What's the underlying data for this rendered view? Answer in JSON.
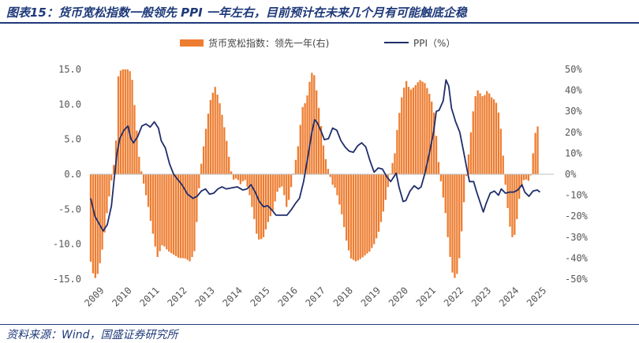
{
  "header": {
    "title": "图表15：货币宽松指数一般领先 PPI 一年左右，目前预计在未来几个月有可能触底企稳"
  },
  "footer": {
    "source": "资料来源：Wind，国盛证券研究所"
  },
  "colors": {
    "bar": "#ed7d31",
    "line": "#1f2d6b",
    "title": "#1f3a7a",
    "axis": "#bfbfbf"
  },
  "chart_data": {
    "type": "bar+line",
    "x_ticks": [
      "2009",
      "2010",
      "2011",
      "2012",
      "2013",
      "2014",
      "2015",
      "2016",
      "2017",
      "2018",
      "2019",
      "2020",
      "2021",
      "2022",
      "2023",
      "2024",
      "2025"
    ],
    "x_range": [
      2009.0,
      2025.75
    ],
    "left_axis": {
      "ylim": [
        -15,
        15
      ],
      "ticks": [
        15,
        10,
        5,
        0,
        -5,
        -10,
        -15
      ],
      "tick_labels": [
        "15.0",
        "10.0",
        "5.0",
        "0.0",
        "-5.0",
        "-10.0",
        "-15.0"
      ]
    },
    "right_axis": {
      "ylim": [
        -50,
        50
      ],
      "ticks": [
        50,
        40,
        30,
        20,
        10,
        0,
        -10,
        -20,
        -30,
        -40,
        -50
      ],
      "tick_labels": [
        "50%",
        "40%",
        "30%",
        "20%",
        "10%",
        "0%",
        "-10%",
        "-20%",
        "-30%",
        "-40%",
        "-50%"
      ]
    },
    "legend": {
      "placement": "top-center"
    },
    "series": [
      {
        "name": "货币宽松指数：领先一年(右)",
        "kind": "bar",
        "axis": "left",
        "anchors": [
          [
            2009.0,
            -12.5
          ],
          [
            2009.1,
            -14.5
          ],
          [
            2009.2,
            -15.0
          ],
          [
            2009.3,
            -13.5
          ],
          [
            2009.45,
            -10.0
          ],
          [
            2009.6,
            -5.0
          ],
          [
            2009.8,
            0.5
          ],
          [
            2009.9,
            3.0
          ],
          [
            2010.0,
            14.0
          ],
          [
            2010.1,
            15.0
          ],
          [
            2010.4,
            15.0
          ],
          [
            2010.5,
            13.5
          ],
          [
            2010.65,
            7.0
          ],
          [
            2010.75,
            2.5
          ],
          [
            2010.85,
            0.0
          ],
          [
            2010.95,
            -2.0
          ],
          [
            2011.1,
            -5.0
          ],
          [
            2011.2,
            -7.5
          ],
          [
            2011.3,
            -9.5
          ],
          [
            2011.4,
            -12.0
          ],
          [
            2011.6,
            -10.0
          ],
          [
            2011.8,
            -11.0
          ],
          [
            2012.0,
            -11.5
          ],
          [
            2012.2,
            -12.0
          ],
          [
            2012.4,
            -12.0
          ],
          [
            2012.6,
            -12.5
          ],
          [
            2012.75,
            -11.0
          ],
          [
            2012.85,
            -6.0
          ],
          [
            2012.95,
            0.0
          ],
          [
            2013.05,
            3.0
          ],
          [
            2013.2,
            7.5
          ],
          [
            2013.35,
            11.0
          ],
          [
            2013.5,
            12.5
          ],
          [
            2013.65,
            10.5
          ],
          [
            2013.8,
            7.5
          ],
          [
            2013.95,
            4.0
          ],
          [
            2014.05,
            1.0
          ],
          [
            2014.15,
            -0.8
          ],
          [
            2014.3,
            -0.5
          ],
          [
            2014.4,
            -1.5
          ],
          [
            2014.5,
            -1.0
          ],
          [
            2014.6,
            -0.8
          ],
          [
            2014.75,
            -3.0
          ],
          [
            2014.9,
            -6.0
          ],
          [
            2015.0,
            -8.5
          ],
          [
            2015.1,
            -9.5
          ],
          [
            2015.25,
            -9.0
          ],
          [
            2015.4,
            -7.0
          ],
          [
            2015.6,
            -5.0
          ],
          [
            2015.75,
            -2.5
          ],
          [
            2015.9,
            -1.5
          ],
          [
            2016.0,
            -3.0
          ],
          [
            2016.1,
            -5.0
          ],
          [
            2016.2,
            -3.0
          ],
          [
            2016.35,
            0.5
          ],
          [
            2016.5,
            4.0
          ],
          [
            2016.65,
            9.5
          ],
          [
            2016.8,
            10.5
          ],
          [
            2016.95,
            14.0
          ],
          [
            2017.05,
            15.0
          ],
          [
            2017.15,
            12.5
          ],
          [
            2017.3,
            8.0
          ],
          [
            2017.45,
            3.0
          ],
          [
            2017.6,
            0.5
          ],
          [
            2017.75,
            -1.5
          ],
          [
            2017.85,
            -2.0
          ],
          [
            2017.95,
            -3.5
          ],
          [
            2018.1,
            -6.0
          ],
          [
            2018.25,
            -9.5
          ],
          [
            2018.4,
            -12.0
          ],
          [
            2018.6,
            -12.5
          ],
          [
            2018.8,
            -12.0
          ],
          [
            2018.95,
            -11.5
          ],
          [
            2019.1,
            -11.0
          ],
          [
            2019.25,
            -10.0
          ],
          [
            2019.4,
            -8.5
          ],
          [
            2019.55,
            -6.0
          ],
          [
            2019.7,
            -3.0
          ],
          [
            2019.85,
            0.5
          ],
          [
            2020.0,
            3.0
          ],
          [
            2020.1,
            7.0
          ],
          [
            2020.25,
            11.0
          ],
          [
            2020.4,
            13.5
          ],
          [
            2020.55,
            12.0
          ],
          [
            2020.7,
            12.5
          ],
          [
            2020.9,
            13.5
          ],
          [
            2021.1,
            13.0
          ],
          [
            2021.25,
            11.5
          ],
          [
            2021.4,
            9.5
          ],
          [
            2021.5,
            5.5
          ],
          [
            2021.6,
            1.0
          ],
          [
            2021.7,
            -2.0
          ],
          [
            2021.85,
            -6.0
          ],
          [
            2021.95,
            -10.5
          ],
          [
            2022.1,
            -14.5
          ],
          [
            2022.2,
            -15.0
          ],
          [
            2022.3,
            -13.5
          ],
          [
            2022.4,
            -9.0
          ],
          [
            2022.5,
            -4.0
          ],
          [
            2022.6,
            0.5
          ],
          [
            2022.7,
            4.0
          ],
          [
            2022.8,
            8.0
          ],
          [
            2022.9,
            11.0
          ],
          [
            2023.0,
            12.0
          ],
          [
            2023.2,
            11.0
          ],
          [
            2023.35,
            12.0
          ],
          [
            2023.5,
            11.0
          ],
          [
            2023.65,
            10.5
          ],
          [
            2023.8,
            8.0
          ],
          [
            2023.9,
            3.5
          ],
          [
            2024.0,
            -1.5
          ],
          [
            2024.1,
            -5.5
          ],
          [
            2024.2,
            -8.5
          ],
          [
            2024.3,
            -9.5
          ],
          [
            2024.4,
            -7.0
          ],
          [
            2024.5,
            -3.5
          ],
          [
            2024.6,
            -1.5
          ],
          [
            2024.7,
            -0.5
          ],
          [
            2024.8,
            -1.0
          ],
          [
            2024.9,
            -0.8
          ],
          [
            2025.0,
            3.0
          ],
          [
            2025.1,
            6.5
          ],
          [
            2025.2,
            7.0
          ]
        ]
      },
      {
        "name": "PPI（%）",
        "kind": "line",
        "axis": "right",
        "points": [
          [
            2009.0,
            -11.5
          ],
          [
            2009.15,
            -20.0
          ],
          [
            2009.3,
            -23.5
          ],
          [
            2009.45,
            -27.0
          ],
          [
            2009.6,
            -24.0
          ],
          [
            2009.75,
            -15.0
          ],
          [
            2009.85,
            -2.0
          ],
          [
            2009.95,
            10.0
          ],
          [
            2010.05,
            17.0
          ],
          [
            2010.2,
            21.0
          ],
          [
            2010.35,
            23.0
          ],
          [
            2010.45,
            17.0
          ],
          [
            2010.55,
            15.0
          ],
          [
            2010.7,
            18.0
          ],
          [
            2010.85,
            23.0
          ],
          [
            2011.0,
            24.0
          ],
          [
            2011.15,
            22.5
          ],
          [
            2011.3,
            25.0
          ],
          [
            2011.45,
            22.0
          ],
          [
            2011.55,
            16.0
          ],
          [
            2011.7,
            12.5
          ],
          [
            2011.85,
            5.0
          ],
          [
            2012.0,
            0.0
          ],
          [
            2012.15,
            -2.5
          ],
          [
            2012.3,
            -5.0
          ],
          [
            2012.5,
            -9.5
          ],
          [
            2012.7,
            -11.5
          ],
          [
            2012.85,
            -10.5
          ],
          [
            2013.0,
            -8.0
          ],
          [
            2013.15,
            -7.0
          ],
          [
            2013.3,
            -9.5
          ],
          [
            2013.45,
            -9.0
          ],
          [
            2013.6,
            -7.0
          ],
          [
            2013.75,
            -6.0
          ],
          [
            2013.9,
            -7.0
          ],
          [
            2014.1,
            -6.5
          ],
          [
            2014.3,
            -6.0
          ],
          [
            2014.5,
            -7.5
          ],
          [
            2014.65,
            -7.0
          ],
          [
            2014.8,
            -5.0
          ],
          [
            2014.95,
            -8.5
          ],
          [
            2015.1,
            -13.0
          ],
          [
            2015.25,
            -15.5
          ],
          [
            2015.4,
            -15.0
          ],
          [
            2015.55,
            -17.0
          ],
          [
            2015.7,
            -19.5
          ],
          [
            2015.9,
            -19.5
          ],
          [
            2016.1,
            -19.5
          ],
          [
            2016.25,
            -17.0
          ],
          [
            2016.4,
            -14.0
          ],
          [
            2016.55,
            -11.5
          ],
          [
            2016.7,
            -3.5
          ],
          [
            2016.85,
            8.0
          ],
          [
            2017.0,
            20.0
          ],
          [
            2017.1,
            26.0
          ],
          [
            2017.2,
            24.5
          ],
          [
            2017.35,
            20.0
          ],
          [
            2017.45,
            16.5
          ],
          [
            2017.6,
            17.0
          ],
          [
            2017.75,
            22.0
          ],
          [
            2017.9,
            21.0
          ],
          [
            2018.05,
            16.0
          ],
          [
            2018.2,
            13.0
          ],
          [
            2018.35,
            11.0
          ],
          [
            2018.5,
            10.5
          ],
          [
            2018.65,
            13.5
          ],
          [
            2018.8,
            15.0
          ],
          [
            2018.95,
            13.0
          ],
          [
            2019.1,
            6.5
          ],
          [
            2019.25,
            1.0
          ],
          [
            2019.4,
            3.0
          ],
          [
            2019.55,
            2.5
          ],
          [
            2019.7,
            -1.0
          ],
          [
            2019.85,
            -3.5
          ],
          [
            2019.95,
            -1.5
          ],
          [
            2020.05,
            0.5
          ],
          [
            2020.15,
            -6.0
          ],
          [
            2020.3,
            -13.0
          ],
          [
            2020.4,
            -12.5
          ],
          [
            2020.55,
            -8.0
          ],
          [
            2020.7,
            -5.5
          ],
          [
            2020.85,
            -7.0
          ],
          [
            2020.95,
            -6.0
          ],
          [
            2021.1,
            1.0
          ],
          [
            2021.25,
            10.0
          ],
          [
            2021.4,
            20.0
          ],
          [
            2021.5,
            30.0
          ],
          [
            2021.6,
            30.5
          ],
          [
            2021.75,
            35.0
          ],
          [
            2021.85,
            45.0
          ],
          [
            2021.95,
            42.0
          ],
          [
            2022.05,
            31.5
          ],
          [
            2022.2,
            25.0
          ],
          [
            2022.35,
            20.0
          ],
          [
            2022.5,
            10.0
          ],
          [
            2022.6,
            3.0
          ],
          [
            2022.7,
            -3.5
          ],
          [
            2022.85,
            -3.5
          ],
          [
            2022.95,
            -8.0
          ],
          [
            2023.05,
            -12.0
          ],
          [
            2023.2,
            -18.0
          ],
          [
            2023.3,
            -14.0
          ],
          [
            2023.45,
            -9.0
          ],
          [
            2023.6,
            -8.0
          ],
          [
            2023.75,
            -10.0
          ],
          [
            2023.85,
            -7.0
          ],
          [
            2024.0,
            -9.0
          ],
          [
            2024.15,
            -8.5
          ],
          [
            2024.3,
            -8.5
          ],
          [
            2024.45,
            -7.5
          ],
          [
            2024.6,
            -5.0
          ],
          [
            2024.7,
            -8.5
          ],
          [
            2024.85,
            -10.5
          ],
          [
            2025.0,
            -8.0
          ],
          [
            2025.15,
            -7.5
          ],
          [
            2025.25,
            -8.5
          ]
        ]
      }
    ]
  }
}
